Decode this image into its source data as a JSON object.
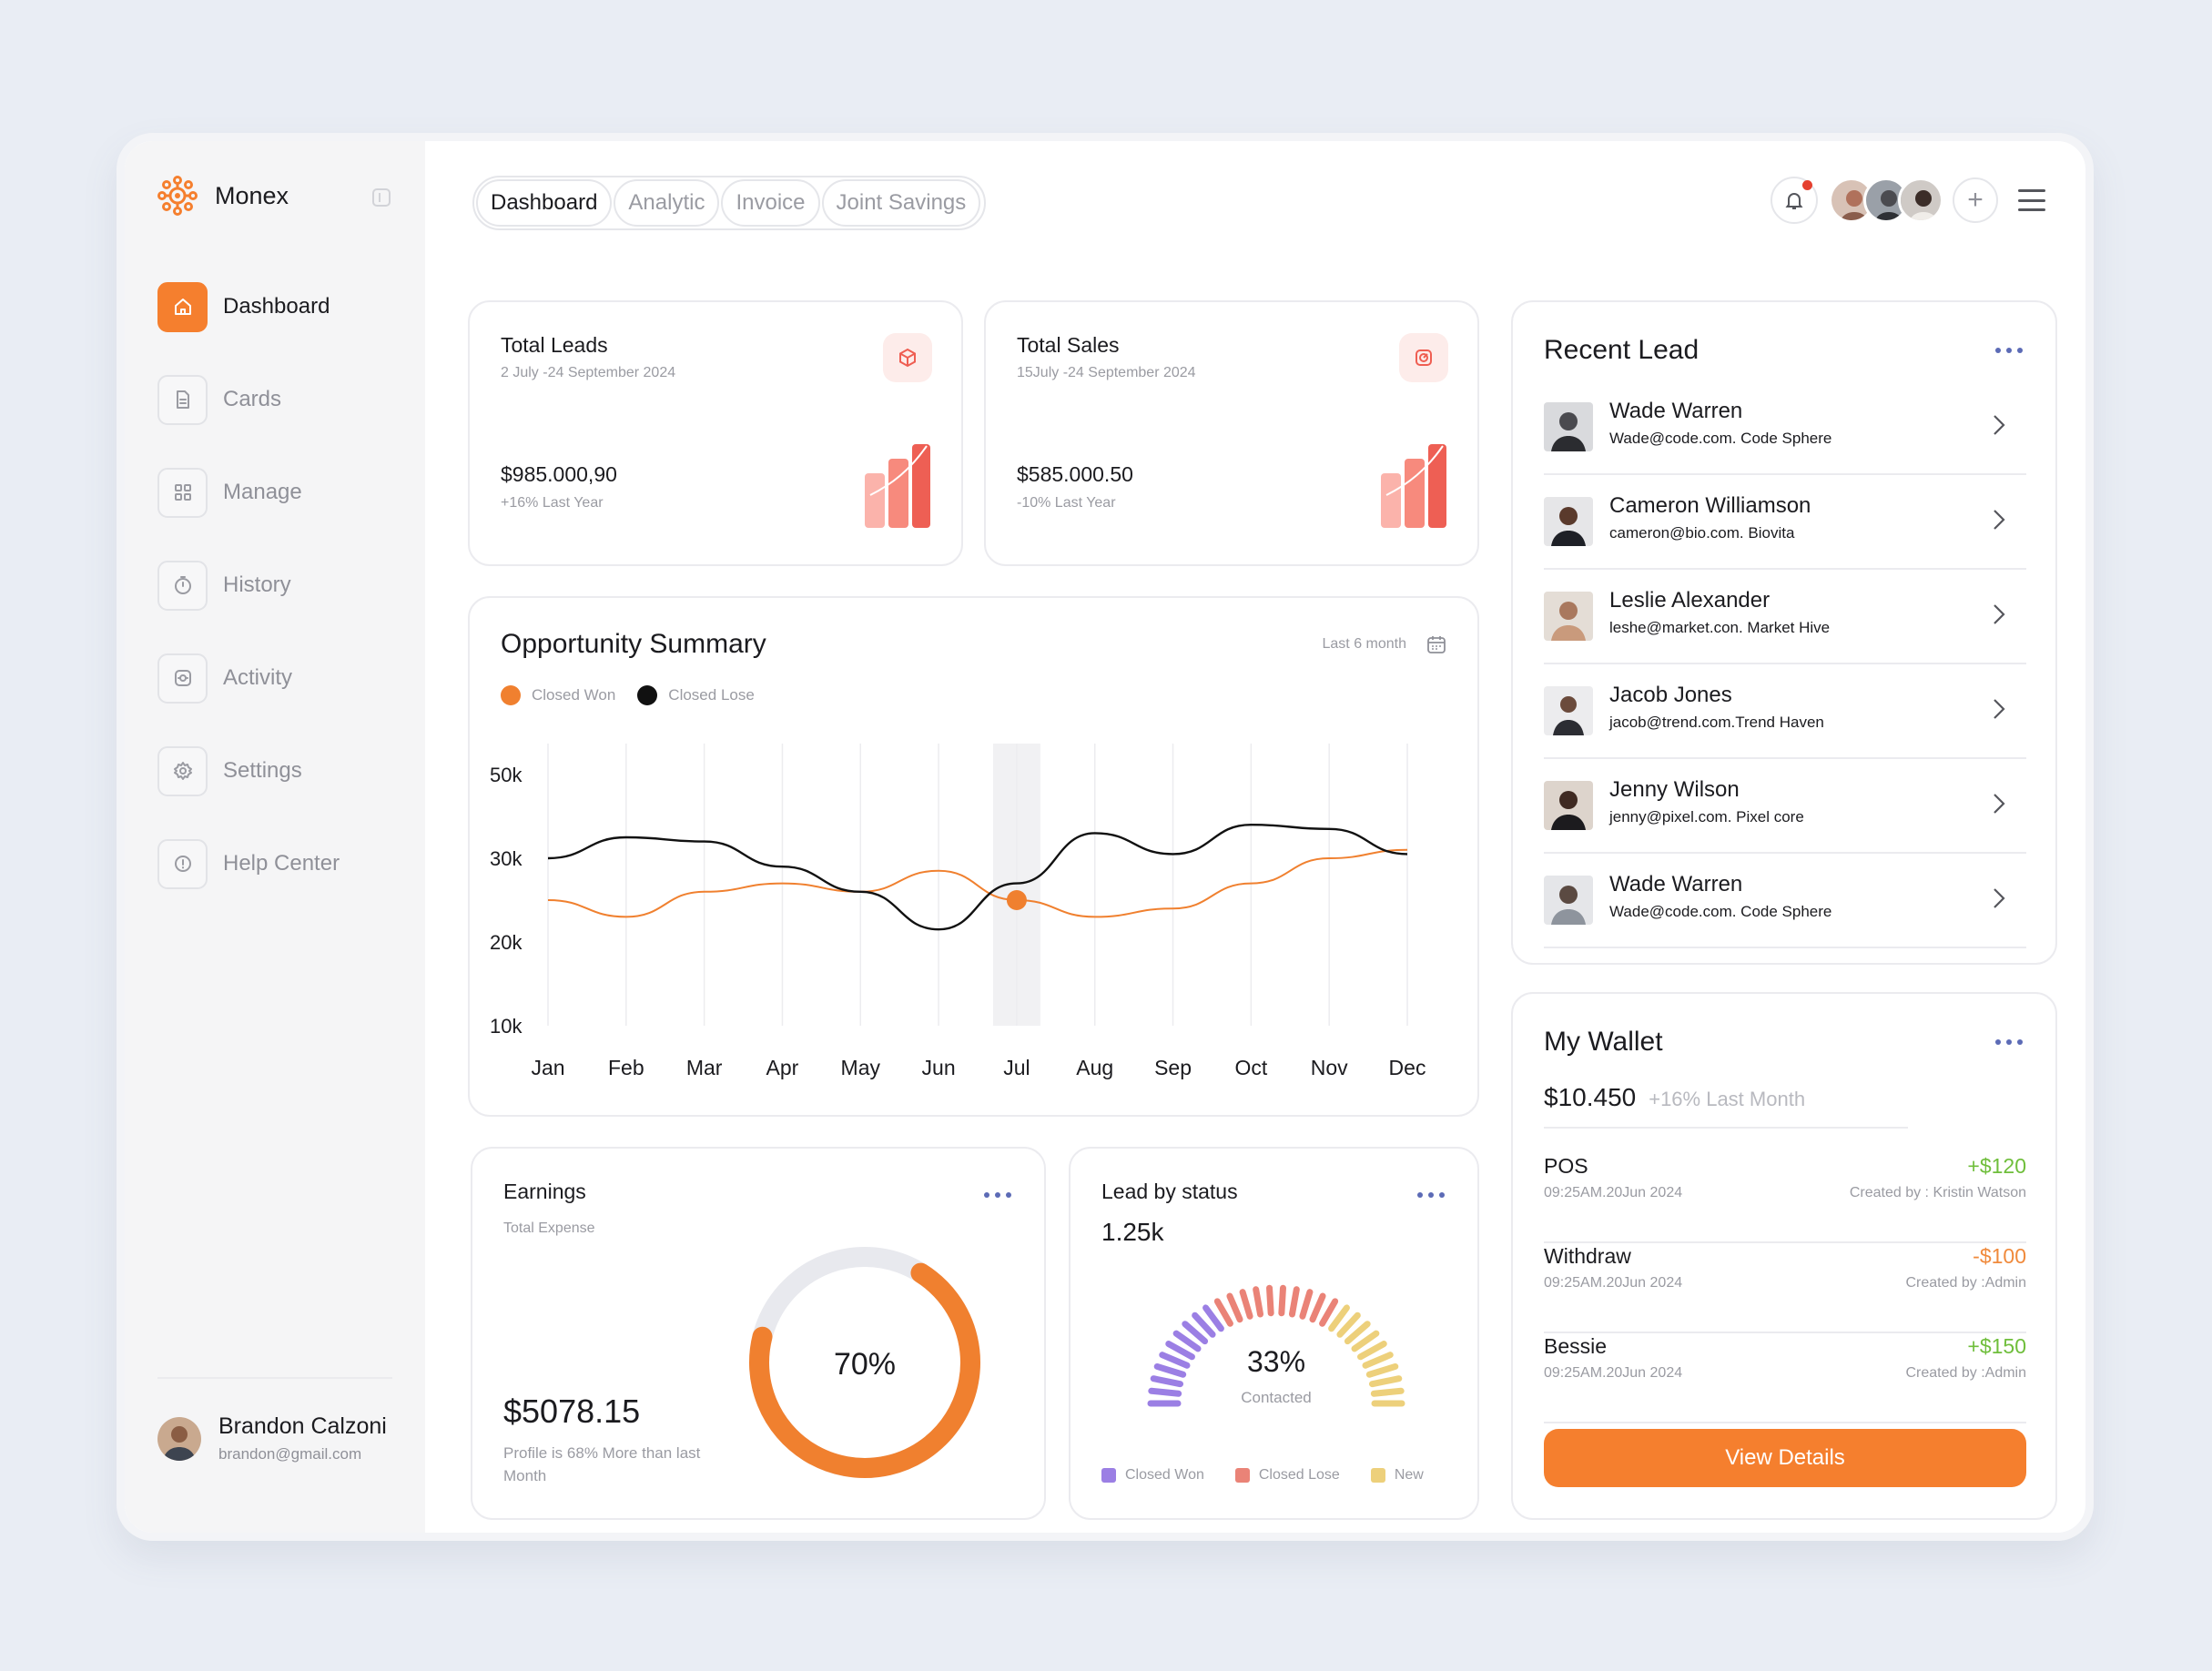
{
  "app": {
    "name": "Monex"
  },
  "sidebar": {
    "items": [
      {
        "label": "Dashboard",
        "icon": "home-icon",
        "active": true
      },
      {
        "label": "Cards",
        "icon": "file-icon"
      },
      {
        "label": "Manage",
        "icon": "grid-icon"
      },
      {
        "label": "History",
        "icon": "clock-icon"
      },
      {
        "label": "Activity",
        "icon": "activity-icon"
      },
      {
        "label": "Settings",
        "icon": "gear-icon"
      },
      {
        "label": "Help Center",
        "icon": "info-icon"
      }
    ],
    "user": {
      "name": "Brandon Calzoni",
      "email": "brandon@gmail.com"
    }
  },
  "tabs": [
    "Dashboard",
    "Analytic",
    "Invoice",
    "Joint Savings"
  ],
  "kpis": [
    {
      "title": "Total Leads",
      "range": "2 July -24 September 2024",
      "value": "$985.000,90",
      "change": "+16% Last Year",
      "icon": "cube-icon"
    },
    {
      "title": "Total Sales",
      "range": "15July -24 September 2024",
      "value": "$585.000.50",
      "change": "-10% Last Year",
      "icon": "target-icon"
    }
  ],
  "opportunity": {
    "title": "Opportunity Summary",
    "range": "Last 6 month",
    "legend": [
      "Closed Won",
      "Closed Lose"
    ]
  },
  "chart_data": {
    "type": "line",
    "categories": [
      "Jan",
      "Feb",
      "Mar",
      "Apr",
      "May",
      "Jun",
      "Jul",
      "Aug",
      "Sep",
      "Oct",
      "Nov",
      "Dec"
    ],
    "yticks": [
      "50k",
      "30k",
      "20k",
      "10k"
    ],
    "series": [
      {
        "name": "Closed Won",
        "color": "#f0802f",
        "values": [
          25,
          23,
          26,
          27,
          26,
          28.5,
          25,
          23,
          24,
          27,
          30,
          32
        ]
      },
      {
        "name": "Closed Lose",
        "color": "#111111",
        "values": [
          30,
          35,
          34,
          29,
          26,
          21.5,
          27,
          36,
          31,
          38,
          37,
          31
        ]
      }
    ],
    "highlight": "Jul",
    "grid": "vertical"
  },
  "earnings": {
    "title": "Earnings",
    "subtitle": "Total Expense",
    "value": "$5078.15",
    "note": "Profile is 68% More than last Month",
    "percent": "70%",
    "fraction": 0.7
  },
  "lead_status": {
    "title": "Lead by status",
    "value": "1.25k",
    "percent": "33%",
    "label": "Contacted",
    "legend": [
      {
        "name": "Closed Won",
        "color": "#9b7fe4"
      },
      {
        "name": "Closed Lose",
        "color": "#ea8377"
      },
      {
        "name": "New",
        "color": "#edd07b"
      }
    ]
  },
  "recent_lead": {
    "title": "Recent Lead",
    "items": [
      {
        "name": "Wade Warren",
        "email": "Wade@code.com. Code Sphere"
      },
      {
        "name": "Cameron Williamson",
        "email": "cameron@bio.com. Biovita"
      },
      {
        "name": "Leslie Alexander",
        "email": "leshe@market.con. Market Hive"
      },
      {
        "name": "Jacob Jones",
        "email": "jacob@trend.com.Trend Haven"
      },
      {
        "name": "Jenny Wilson",
        "email": "jenny@pixel.com. Pixel core"
      },
      {
        "name": "Wade Warren",
        "email": "Wade@code.com. Code Sphere"
      }
    ]
  },
  "wallet": {
    "title": "My Wallet",
    "balance": "$10.450",
    "change": "+16% Last Month",
    "transactions": [
      {
        "name": "POS",
        "date": "09:25AM.20Jun 2024",
        "amount": "+$120",
        "by": "Created by : Kristin Watson",
        "color": "#6fbe3b"
      },
      {
        "name": "Withdraw",
        "date": "09:25AM.20Jun 2024",
        "amount": "-$100",
        "by": "Created by :Admin",
        "color": "#f08a3c"
      },
      {
        "name": "Bessie",
        "date": "09:25AM.20Jun 2024",
        "amount": "+$150",
        "by": "Created by :Admin",
        "color": "#6fbe3b"
      }
    ],
    "button": "View Details"
  }
}
